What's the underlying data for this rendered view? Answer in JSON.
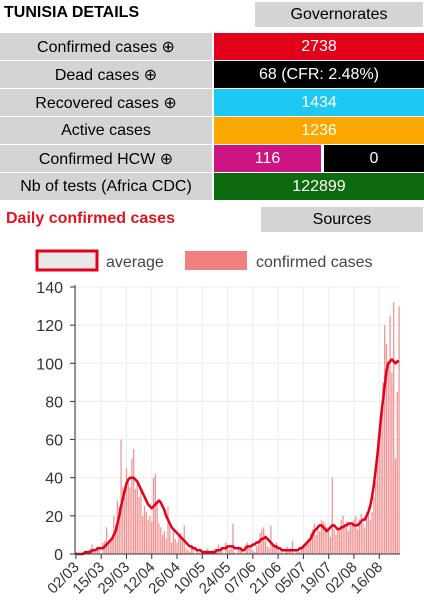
{
  "header": {
    "title": "TUNISIA DETAILS",
    "governorates_label": "Governorates"
  },
  "stats": [
    {
      "label": "Confirmed cases ⊕",
      "value": "2738",
      "color": "#e3001b"
    },
    {
      "label": "Dead cases ⊕",
      "value": "68 (CFR: 2.48%)",
      "color": "#000000"
    },
    {
      "label": "Recovered cases ⊕",
      "value": "1434",
      "color": "#1ec8f5"
    },
    {
      "label": "Active cases",
      "value": "1236",
      "color": "#fca600"
    },
    {
      "label": "Nb of tests (Africa CDC)",
      "value": "122899",
      "color": "#0e6a0e"
    }
  ],
  "hcw": {
    "label": "Confirmed HCW ⊕",
    "value": "116",
    "value2": "0",
    "color": "#cc1583",
    "color2": "#000000"
  },
  "daily": {
    "title": "Daily confirmed cases",
    "sources_label": "Sources"
  },
  "chart_data": {
    "type": "bar",
    "legend": [
      {
        "name": "average",
        "color": "#e3001b",
        "kind": "line"
      },
      {
        "name": "confirmed cases",
        "color": "#f08080",
        "kind": "bar"
      }
    ],
    "legend_position": "top",
    "ylim": [
      0,
      140
    ],
    "yticks": [
      0,
      20,
      40,
      60,
      80,
      100,
      120,
      140
    ],
    "xticks": [
      "02/03",
      "15/03",
      "29/03",
      "12/04",
      "26/04",
      "10/05",
      "24/05",
      "07/06",
      "21/06",
      "05/07",
      "19/07",
      "02/08",
      "16/08"
    ],
    "start_date": "02/03",
    "series": [
      {
        "name": "confirmed cases",
        "values": [
          1,
          0,
          0,
          0,
          1,
          1,
          1,
          2,
          3,
          5,
          2,
          1,
          4,
          3,
          0,
          6,
          7,
          14,
          5,
          6,
          8,
          20,
          15,
          28,
          25,
          60,
          35,
          30,
          45,
          40,
          35,
          50,
          55,
          34,
          38,
          30,
          33,
          20,
          25,
          22,
          18,
          20,
          17,
          40,
          42,
          28,
          16,
          14,
          10,
          12,
          8,
          25,
          14,
          6,
          12,
          8,
          6,
          10,
          11,
          7,
          15,
          3,
          2,
          1,
          4,
          3,
          0,
          2,
          1,
          0,
          0,
          1,
          2,
          3,
          0,
          1,
          2,
          3,
          2,
          5,
          1,
          3,
          0,
          6,
          4,
          2,
          3,
          16,
          1,
          0,
          4,
          3,
          2,
          0,
          5,
          6,
          4,
          3,
          2,
          1,
          4,
          5,
          11,
          13,
          14,
          7,
          4,
          3,
          15,
          5,
          4,
          6,
          2,
          1,
          3,
          0,
          2,
          4,
          2,
          3,
          7,
          0,
          2,
          1,
          1,
          3,
          5,
          4,
          6,
          8,
          11,
          13,
          16,
          10,
          15,
          12,
          18,
          17,
          16,
          14,
          12,
          9,
          40,
          13,
          10,
          14,
          12,
          18,
          20,
          14,
          17,
          12,
          16,
          15,
          18,
          20,
          13,
          18,
          21,
          16,
          14,
          22,
          25,
          18,
          22,
          30,
          38,
          50,
          60,
          70,
          90,
          120,
          110,
          100,
          125,
          95,
          132,
          50,
          85,
          130
        ]
      },
      {
        "name": "average",
        "values": [
          0,
          0,
          0,
          0,
          0,
          1,
          1,
          1,
          1,
          2,
          2,
          2,
          3,
          3,
          3,
          3,
          4,
          5,
          6,
          7,
          8,
          10,
          12,
          16,
          20,
          25,
          29,
          33,
          37,
          39,
          40,
          40,
          40,
          39,
          38,
          36,
          34,
          32,
          30,
          28,
          26,
          25,
          24,
          25,
          26,
          27,
          28,
          27,
          25,
          23,
          20,
          18,
          16,
          14,
          13,
          12,
          11,
          10,
          9,
          8,
          7,
          6,
          5,
          4,
          4,
          3,
          3,
          2,
          2,
          2,
          1,
          1,
          1,
          1,
          1,
          1,
          1,
          1,
          2,
          2,
          2,
          3,
          3,
          3,
          4,
          4,
          4,
          4,
          3,
          3,
          3,
          3,
          2,
          2,
          3,
          4,
          4,
          4,
          5,
          5,
          6,
          6,
          7,
          8,
          8,
          9,
          8,
          7,
          6,
          5,
          4,
          4,
          3,
          3,
          2,
          2,
          2,
          2,
          2,
          2,
          2,
          2,
          2,
          2,
          3,
          3,
          4,
          5,
          6,
          7,
          8,
          10,
          12,
          13,
          14,
          15,
          15,
          14,
          13,
          12,
          13,
          14,
          15,
          15,
          14,
          13,
          13,
          14,
          14,
          15,
          15,
          16,
          16,
          16,
          15,
          15,
          15,
          16,
          17,
          18,
          18,
          20,
          22,
          25,
          30,
          36,
          44,
          52,
          62,
          72,
          80,
          88,
          96,
          100,
          101,
          102,
          101,
          100,
          101,
          101
        ]
      }
    ]
  }
}
